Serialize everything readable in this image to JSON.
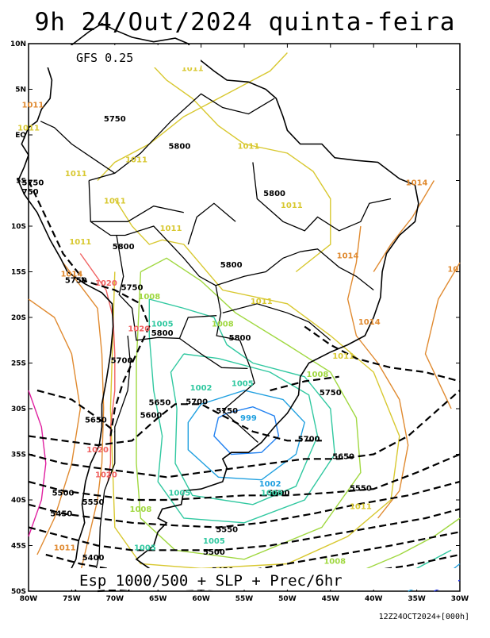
{
  "title": "9h 24/Out/2024 quinta-feira",
  "model_label": "GFS 0.25",
  "caption": "Esp 1000/500 + SLP + Prec/6hr",
  "timestamp": "12Z24OCT2024+[000h]",
  "lat_labels": [
    "10N",
    "5N",
    "EQ",
    "5S",
    "10S",
    "15S",
    "20S",
    "25S",
    "30S",
    "35S",
    "40S",
    "45S",
    "50S"
  ],
  "lon_labels": [
    "80W",
    "75W",
    "70W",
    "65W",
    "60W",
    "55W",
    "50W",
    "45W",
    "40W",
    "35W",
    "30W"
  ],
  "thickness_labels": [
    {
      "text": "5750",
      "lon": -70.0,
      "lat": 1.5
    },
    {
      "text": "5750",
      "lon": -79.5,
      "lat": -5.5
    },
    {
      "text": "750",
      "lon": -79.8,
      "lat": -6.5
    },
    {
      "text": "5800",
      "lon": -62.5,
      "lat": -1.5
    },
    {
      "text": "5800",
      "lon": -51.5,
      "lat": -6.7
    },
    {
      "text": "5800",
      "lon": -69.0,
      "lat": -12.5
    },
    {
      "text": "5800",
      "lon": -56.5,
      "lat": -14.5
    },
    {
      "text": "5750",
      "lon": -74.5,
      "lat": -16.2
    },
    {
      "text": "5750",
      "lon": -68.0,
      "lat": -17.0
    },
    {
      "text": "5800",
      "lon": -64.5,
      "lat": -22.0
    },
    {
      "text": "5800",
      "lon": -55.5,
      "lat": -22.5
    },
    {
      "text": "5700",
      "lon": -69.2,
      "lat": -25.0
    },
    {
      "text": "5750",
      "lon": -45.0,
      "lat": -28.5
    },
    {
      "text": "5650",
      "lon": -64.8,
      "lat": -29.6
    },
    {
      "text": "5700",
      "lon": -60.5,
      "lat": -29.5
    },
    {
      "text": "5600",
      "lon": -65.8,
      "lat": -31.0
    },
    {
      "text": "5750",
      "lon": -57.0,
      "lat": -30.5
    },
    {
      "text": "5650",
      "lon": -72.2,
      "lat": -31.5
    },
    {
      "text": "5700",
      "lon": -47.5,
      "lat": -33.6
    },
    {
      "text": "5650",
      "lon": -43.5,
      "lat": -35.5
    },
    {
      "text": "5600",
      "lon": -51.0,
      "lat": -39.5
    },
    {
      "text": "5550",
      "lon": -41.5,
      "lat": -39.0
    },
    {
      "text": "5500",
      "lon": -76.0,
      "lat": -39.5
    },
    {
      "text": "5550",
      "lon": -72.5,
      "lat": -40.5
    },
    {
      "text": "5450",
      "lon": -76.2,
      "lat": -41.8
    },
    {
      "text": "5550",
      "lon": -57.0,
      "lat": -43.5
    },
    {
      "text": "5500",
      "lon": -58.5,
      "lat": -46.0
    },
    {
      "text": "5400",
      "lon": -72.5,
      "lat": -46.6
    },
    {
      "text": "5450",
      "lon": -57.5,
      "lat": -48.0
    }
  ],
  "pressure_labels": [
    {
      "text": "1011",
      "lon": -61.0,
      "lat": 7.0,
      "color": "#d8c830"
    },
    {
      "text": "1011",
      "lon": -79.5,
      "lat": 3.0,
      "color": "#e08a30"
    },
    {
      "text": "1011",
      "lon": -80.0,
      "lat": 0.5,
      "color": "#d8c830"
    },
    {
      "text": "1011",
      "lon": -54.5,
      "lat": -1.5,
      "color": "#d8c830"
    },
    {
      "text": "1011",
      "lon": -67.5,
      "lat": -3.0,
      "color": "#d8c830"
    },
    {
      "text": "1011",
      "lon": -74.5,
      "lat": -4.5,
      "color": "#d8c830"
    },
    {
      "text": "1011",
      "lon": -70.0,
      "lat": -7.5,
      "color": "#d8c830"
    },
    {
      "text": "1014",
      "lon": -35.0,
      "lat": -5.5,
      "color": "#e08a30"
    },
    {
      "text": "1011",
      "lon": -63.5,
      "lat": -10.5,
      "color": "#d8c830"
    },
    {
      "text": "1011",
      "lon": -49.5,
      "lat": -8.0,
      "color": "#d8c830"
    },
    {
      "text": "1011",
      "lon": -74.0,
      "lat": -12.0,
      "color": "#d8c830"
    },
    {
      "text": "1014",
      "lon": -43.0,
      "lat": -13.5,
      "color": "#e08a30"
    },
    {
      "text": "1014",
      "lon": -75.0,
      "lat": -15.5,
      "color": "#e08a30"
    },
    {
      "text": "1020",
      "lon": -71.0,
      "lat": -16.5,
      "color": "#f06060"
    },
    {
      "text": "1008",
      "lon": -66.0,
      "lat": -18.0,
      "color": "#a0d840"
    },
    {
      "text": "1011",
      "lon": -53.0,
      "lat": -18.5,
      "color": "#d8c830"
    },
    {
      "text": "1005",
      "lon": -64.5,
      "lat": -21.0,
      "color": "#30c8a0"
    },
    {
      "text": "1008",
      "lon": -57.5,
      "lat": -21.0,
      "color": "#a0d840"
    },
    {
      "text": "1014",
      "lon": -40.5,
      "lat": -20.8,
      "color": "#e08a30"
    },
    {
      "text": "1020",
      "lon": -67.2,
      "lat": -21.5,
      "color": "#f06060"
    },
    {
      "text": "1011",
      "lon": -43.5,
      "lat": -24.5,
      "color": "#d8c830"
    },
    {
      "text": "1008",
      "lon": -46.5,
      "lat": -26.5,
      "color": "#a0d840"
    },
    {
      "text": "1005",
      "lon": -55.2,
      "lat": -27.5,
      "color": "#30c8a0"
    },
    {
      "text": "1002",
      "lon": -60.0,
      "lat": -28.0,
      "color": "#30c8a0"
    },
    {
      "text": "999",
      "lon": -54.5,
      "lat": -31.3,
      "color": "#20a0e0"
    },
    {
      "text": "1020",
      "lon": -72.0,
      "lat": -34.8,
      "color": "#f06060"
    },
    {
      "text": "1020",
      "lon": -71.0,
      "lat": -37.5,
      "color": "#f06060"
    },
    {
      "text": "1002",
      "lon": -52.0,
      "lat": -38.5,
      "color": "#20a0e0"
    },
    {
      "text": "1005",
      "lon": -51.8,
      "lat": -39.5,
      "color": "#30c8a0"
    },
    {
      "text": "1005",
      "lon": -62.5,
      "lat": -39.5,
      "color": "#30c8a0"
    },
    {
      "text": "1011",
      "lon": -41.5,
      "lat": -41.0,
      "color": "#d8c830"
    },
    {
      "text": "1008",
      "lon": -67.0,
      "lat": -41.3,
      "color": "#a0d840"
    },
    {
      "text": "1005",
      "lon": -58.5,
      "lat": -44.8,
      "color": "#30c8a0"
    },
    {
      "text": "1005",
      "lon": -66.5,
      "lat": -45.5,
      "color": "#30c8a0"
    },
    {
      "text": "1008",
      "lon": -44.5,
      "lat": -47.0,
      "color": "#a0d840"
    },
    {
      "text": "1011",
      "lon": -75.8,
      "lat": -45.5,
      "color": "#e08a30"
    },
    {
      "text": "10",
      "lon": -30.8,
      "lat": -15.0,
      "color": "#e08a30"
    }
  ],
  "colors": {
    "thickness": "#000000",
    "coast": "#000000",
    "p1020": "#f06060",
    "p1014": "#e08a30",
    "p1011": "#d8c830",
    "p1008": "#a0d840",
    "p1005": "#30c8a0",
    "p1002": "#20a0e0",
    "p999": "#2080f0",
    "magenta": "#e020a0",
    "blue_deep": "#2030e0"
  },
  "map_extent": {
    "lon_min": -80,
    "lon_max": -30,
    "lat_min": -50,
    "lat_max": 10
  }
}
